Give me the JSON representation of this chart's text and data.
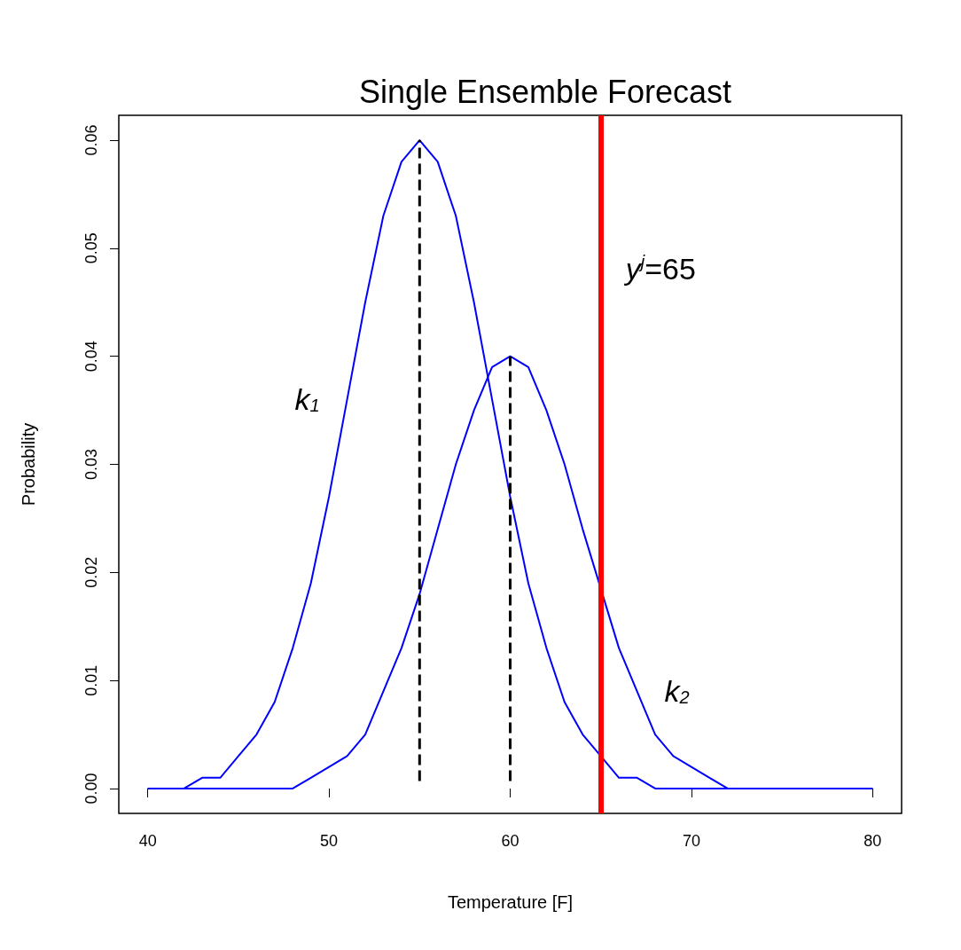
{
  "chart_data": {
    "type": "line",
    "title": "Single Ensemble Forecast",
    "xlabel": "Temperature [F]",
    "ylabel": "Probability",
    "xlim": [
      38.4,
      81.6
    ],
    "xticks": [
      40,
      50,
      60,
      70,
      80
    ],
    "ylim": [
      -0.0023,
      0.0623
    ],
    "yticks": [
      {
        "value": 0,
        "label": "0.00"
      },
      {
        "value": 0.01,
        "label": "0.01"
      },
      {
        "value": 0.02,
        "label": "0.02"
      },
      {
        "value": 0.03,
        "label": "0.03"
      },
      {
        "value": 0.04,
        "label": "0.04"
      },
      {
        "value": 0.05,
        "label": "0.05"
      },
      {
        "value": 0.06,
        "label": "0.06"
      }
    ],
    "grid": false,
    "marker": "none",
    "line_style": "solid",
    "series": [
      {
        "name": "k$_{1}$",
        "color": "#0000ff",
        "x": [
          40,
          41,
          42,
          43,
          44,
          45,
          46,
          47,
          48,
          49,
          50,
          51,
          52,
          53,
          54,
          55,
          56,
          57,
          58,
          59,
          60,
          61,
          62,
          63,
          64,
          65,
          66,
          67,
          68,
          69,
          70,
          71,
          72,
          73,
          74,
          75,
          76,
          77,
          78,
          79,
          80
        ],
        "values": [
          0,
          0,
          0,
          0.001,
          0.001,
          0.003,
          0.005,
          0.008,
          0.013,
          0.019,
          0.027,
          0.036,
          0.045,
          0.053,
          0.058,
          0.06,
          0.058,
          0.053,
          0.045,
          0.036,
          0.027,
          0.019,
          0.013,
          0.008,
          0.005,
          0.003,
          0.001,
          0.001,
          0,
          0,
          0,
          0,
          0,
          0,
          0,
          0,
          0,
          0,
          0,
          0,
          0
        ]
      },
      {
        "name": "k$_{2}$",
        "color": "#0000ff",
        "x": [
          40,
          41,
          42,
          43,
          44,
          45,
          46,
          47,
          48,
          49,
          50,
          51,
          52,
          53,
          54,
          55,
          56,
          57,
          58,
          59,
          60,
          61,
          62,
          63,
          64,
          65,
          66,
          67,
          68,
          69,
          70,
          71,
          72,
          73,
          74,
          75,
          76,
          77,
          78,
          79,
          80
        ],
        "values": [
          0,
          0,
          0,
          0,
          0,
          0,
          0,
          0,
          0,
          0.001,
          0.002,
          0.003,
          0.005,
          0.009,
          0.013,
          0.018,
          0.024,
          0.03,
          0.035,
          0.039,
          0.04,
          0.039,
          0.035,
          0.03,
          0.024,
          null,
          0.013,
          0.009,
          0.005,
          0.003,
          0.002,
          0.001,
          0,
          0,
          0,
          0,
          0,
          0,
          0,
          0,
          0
        ]
      },
      {
        "color": "#000000",
        "line_style": "dashed",
        "x": [
          55,
          55
        ],
        "values": [
          0.0007,
          0.06
        ]
      },
      {
        "color": "#000000",
        "line_style": "dashed",
        "x": [
          60,
          60
        ],
        "values": [
          0.0007,
          0.04
        ]
      }
    ],
    "ref_lines": [
      {
        "axis": "x",
        "value": 65,
        "label": "y$^{j}$=65",
        "color": "#ff0000"
      }
    ]
  }
}
